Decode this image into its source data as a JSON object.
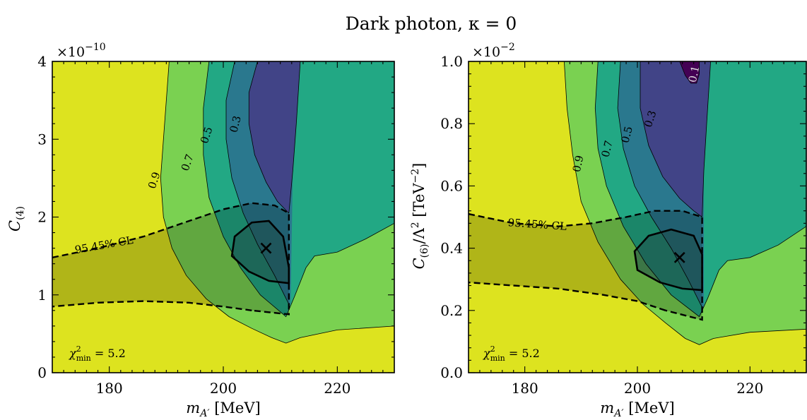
{
  "title": "Dark photon, κ = 0",
  "colors": {
    "yellow": "#dde31f",
    "light_green": "#7ad151",
    "green": "#22a884",
    "teal": "#2a788e",
    "blue": "#414487",
    "purple": "#440154",
    "best_fit_region": "#1f4e4a",
    "cl_shade": "#000000"
  },
  "chart_data": [
    {
      "type": "contour",
      "xlabel": "m_A′ [MeV]",
      "ylabel": "C_(4)",
      "y_multiplier": "×10^−10",
      "xlim": [
        170,
        230
      ],
      "ylim": [
        0,
        4
      ],
      "xticks": [
        "180",
        "200",
        "220"
      ],
      "yticks": [
        "0",
        "1",
        "2",
        "3",
        "4"
      ],
      "contour_levels": [
        "0.9",
        "0.7",
        "0.5",
        "0.3"
      ],
      "cl_label": "95.45% CL",
      "chi2_label": "χ²_min = 5.2",
      "best_fit": {
        "x": 207.5,
        "y": 1.6
      },
      "contours": {
        "c09": [
          [
            190.5,
            4.0
          ],
          [
            189.5,
            3.0
          ],
          [
            189.0,
            2.5
          ],
          [
            189.5,
            2.0
          ],
          [
            191.0,
            1.6
          ],
          [
            193.5,
            1.25
          ],
          [
            197.0,
            0.95
          ],
          [
            201.0,
            0.72
          ],
          [
            205.0,
            0.57
          ],
          [
            208.5,
            0.45
          ],
          [
            211.0,
            0.38
          ],
          [
            213.5,
            0.45
          ],
          [
            220.0,
            0.55
          ],
          [
            230.0,
            0.6
          ]
        ],
        "c07": [
          [
            197.5,
            4.0
          ],
          [
            196.5,
            3.4
          ],
          [
            196.5,
            2.8
          ],
          [
            197.5,
            2.25
          ],
          [
            200.0,
            1.75
          ],
          [
            203.0,
            1.35
          ],
          [
            206.5,
            1.0
          ],
          [
            211.0,
            0.72
          ],
          [
            212.5,
            0.98
          ],
          [
            214.5,
            1.35
          ],
          [
            216.0,
            1.5
          ],
          [
            220.0,
            1.55
          ],
          [
            225.0,
            1.72
          ],
          [
            230.0,
            1.92
          ]
        ],
        "c05": [
          [
            202.0,
            4.0
          ],
          [
            200.5,
            3.5
          ],
          [
            200.5,
            3.0
          ],
          [
            201.5,
            2.5
          ],
          [
            203.5,
            2.05
          ],
          [
            206.0,
            1.65
          ],
          [
            209.0,
            1.25
          ],
          [
            211.5,
            0.88
          ]
        ],
        "c03": [
          [
            206.0,
            4.0
          ],
          [
            204.5,
            3.6
          ],
          [
            204.5,
            3.2
          ],
          [
            205.5,
            2.8
          ],
          [
            207.5,
            2.45
          ],
          [
            209.5,
            2.2
          ],
          [
            211.5,
            2.05
          ]
        ],
        "c03b": [
          [
            211.5,
            2.05
          ],
          [
            212.2,
            2.6
          ],
          [
            212.8,
            3.2
          ],
          [
            213.5,
            4.0
          ]
        ],
        "cl_upper": [
          [
            170.0,
            1.48
          ],
          [
            178.0,
            1.6
          ],
          [
            186.0,
            1.75
          ],
          [
            194.0,
            1.95
          ],
          [
            200.0,
            2.1
          ],
          [
            205.0,
            2.18
          ],
          [
            209.0,
            2.15
          ],
          [
            211.5,
            2.05
          ],
          [
            211.5,
            0.75
          ],
          [
            205.0,
            0.8
          ]
        ],
        "cl_lower": [
          [
            205.0,
            0.8
          ],
          [
            200.0,
            0.85
          ],
          [
            194.0,
            0.9
          ],
          [
            186.0,
            0.92
          ],
          [
            178.0,
            0.9
          ],
          [
            170.0,
            0.85
          ]
        ],
        "ellipse": [
          [
            211.5,
            1.15
          ],
          [
            208.0,
            1.18
          ],
          [
            204.5,
            1.3
          ],
          [
            201.5,
            1.5
          ],
          [
            202.0,
            1.75
          ],
          [
            205.0,
            1.93
          ],
          [
            208.0,
            1.95
          ],
          [
            210.5,
            1.75
          ],
          [
            211.5,
            1.35
          ]
        ]
      }
    },
    {
      "type": "contour",
      "xlabel": "m_A′ [MeV]",
      "ylabel": "C_(6)/Λ² [TeV^−2]",
      "y_multiplier": "×10^−2",
      "xlim": [
        170,
        230
      ],
      "ylim": [
        0,
        1
      ],
      "xticks": [
        "180",
        "200",
        "220"
      ],
      "yticks": [
        "0.0",
        "0.2",
        "0.4",
        "0.6",
        "0.8",
        "1.0"
      ],
      "contour_levels": [
        "0.9",
        "0.7",
        "0.5",
        "0.3",
        "0.1"
      ],
      "cl_label": "95.45% CL",
      "chi2_label": "χ²_min = 5.2",
      "best_fit": {
        "x": 207.5,
        "y": 0.37
      },
      "contours": {
        "c09": [
          [
            187.0,
            1.0
          ],
          [
            187.5,
            0.85
          ],
          [
            188.5,
            0.7
          ],
          [
            190.0,
            0.55
          ],
          [
            193.0,
            0.42
          ],
          [
            197.0,
            0.3
          ],
          [
            201.0,
            0.22
          ],
          [
            205.0,
            0.16
          ],
          [
            208.5,
            0.11
          ],
          [
            211.0,
            0.09
          ],
          [
            213.5,
            0.11
          ],
          [
            220.0,
            0.13
          ],
          [
            230.0,
            0.14
          ]
        ],
        "c07": [
          [
            193.0,
            1.0
          ],
          [
            192.5,
            0.85
          ],
          [
            193.0,
            0.72
          ],
          [
            194.5,
            0.6
          ],
          [
            197.5,
            0.47
          ],
          [
            201.5,
            0.35
          ],
          [
            206.0,
            0.25
          ],
          [
            211.0,
            0.18
          ],
          [
            212.5,
            0.24
          ],
          [
            214.5,
            0.33
          ],
          [
            216.0,
            0.36
          ],
          [
            220.0,
            0.37
          ],
          [
            225.0,
            0.41
          ],
          [
            230.0,
            0.47
          ]
        ],
        "c05": [
          [
            197.0,
            1.0
          ],
          [
            196.5,
            0.85
          ],
          [
            197.5,
            0.72
          ],
          [
            199.5,
            0.6
          ],
          [
            202.5,
            0.5
          ],
          [
            206.0,
            0.4
          ],
          [
            209.0,
            0.3
          ],
          [
            211.5,
            0.21
          ]
        ],
        "c03": [
          [
            200.5,
            1.0
          ],
          [
            200.5,
            0.85
          ],
          [
            202.0,
            0.73
          ],
          [
            204.5,
            0.63
          ],
          [
            207.5,
            0.56
          ],
          [
            210.0,
            0.52
          ],
          [
            211.5,
            0.5
          ]
        ],
        "c03b": [
          [
            211.5,
            0.5
          ],
          [
            211.8,
            0.65
          ],
          [
            212.3,
            0.8
          ],
          [
            213.0,
            1.0
          ]
        ],
        "c01": [
          [
            207.5,
            1.0
          ],
          [
            208.5,
            0.955
          ],
          [
            209.5,
            0.93
          ],
          [
            210.5,
            0.93
          ],
          [
            211.0,
            0.96
          ],
          [
            211.0,
            1.0
          ]
        ],
        "cl_upper": [
          [
            170.0,
            0.51
          ],
          [
            178.0,
            0.48
          ],
          [
            186.0,
            0.47
          ],
          [
            192.0,
            0.48
          ],
          [
            198.0,
            0.5
          ],
          [
            203.0,
            0.52
          ],
          [
            208.0,
            0.52
          ],
          [
            211.5,
            0.5
          ],
          [
            211.5,
            0.17
          ],
          [
            205.0,
            0.2
          ]
        ],
        "cl_lower": [
          [
            205.0,
            0.2
          ],
          [
            200.0,
            0.23
          ],
          [
            194.0,
            0.25
          ],
          [
            186.0,
            0.27
          ],
          [
            178.0,
            0.28
          ],
          [
            170.0,
            0.29
          ]
        ],
        "ellipse": [
          [
            211.5,
            0.265
          ],
          [
            208.0,
            0.27
          ],
          [
            204.0,
            0.29
          ],
          [
            200.0,
            0.33
          ],
          [
            199.5,
            0.39
          ],
          [
            202.0,
            0.44
          ],
          [
            206.0,
            0.46
          ],
          [
            210.0,
            0.44
          ],
          [
            211.5,
            0.38
          ]
        ]
      }
    }
  ]
}
